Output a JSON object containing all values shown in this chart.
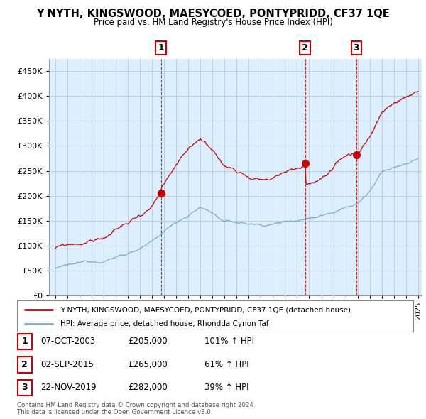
{
  "title": "Y NYTH, KINGSWOOD, MAESYCOED, PONTYPRIDD, CF37 1QE",
  "subtitle": "Price paid vs. HM Land Registry's House Price Index (HPI)",
  "legend_line1": "Y NYTH, KINGSWOOD, MAESYCOED, PONTYPRIDD, CF37 1QE (detached house)",
  "legend_line2": "HPI: Average price, detached house, Rhondda Cynon Taf",
  "sale1_label": "1",
  "sale1_date": "07-OCT-2003",
  "sale1_price": "£205,000",
  "sale1_hpi": "101% ↑ HPI",
  "sale2_label": "2",
  "sale2_date": "02-SEP-2015",
  "sale2_price": "£265,000",
  "sale2_hpi": "61% ↑ HPI",
  "sale3_label": "3",
  "sale3_date": "22-NOV-2019",
  "sale3_price": "£282,000",
  "sale3_hpi": "39% ↑ HPI",
  "footnote1": "Contains HM Land Registry data © Crown copyright and database right 2024.",
  "footnote2": "This data is licensed under the Open Government Licence v3.0.",
  "red_color": "#cc0000",
  "blue_color": "#7aaacc",
  "chart_bg": "#ddeeff",
  "bg_color": "#ffffff",
  "grid_color": "#bbccdd",
  "ylim": [
    0,
    475000
  ],
  "yticks": [
    0,
    50000,
    100000,
    150000,
    200000,
    250000,
    300000,
    350000,
    400000,
    450000
  ],
  "sale1_x": 2003.75,
  "sale1_y": 205000,
  "sale2_x": 2015.67,
  "sale2_y": 265000,
  "sale3_x": 2019.9,
  "sale3_y": 282000,
  "xmin": 1994.5,
  "xmax": 2025.3
}
